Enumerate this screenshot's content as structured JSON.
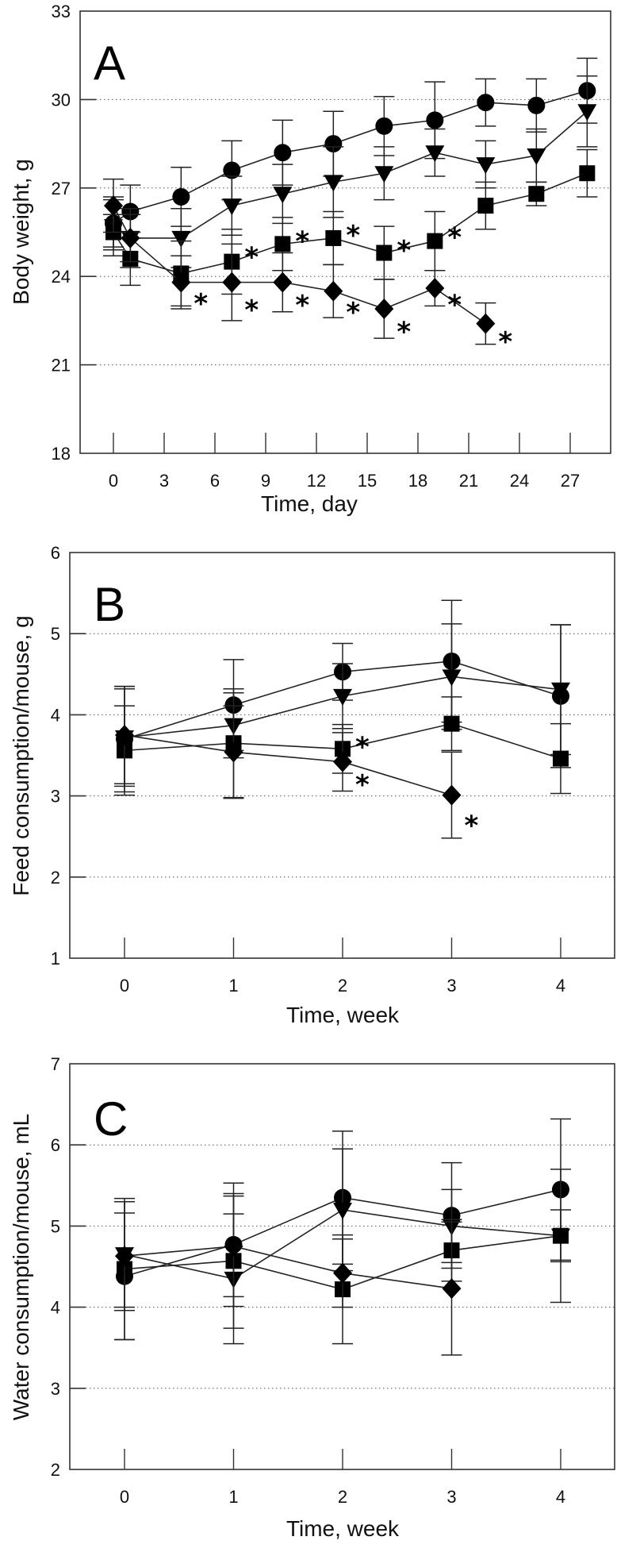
{
  "chart_data": [
    {
      "type": "line",
      "panel": "A",
      "xlabel": "Time, day",
      "ylabel": "Body weight, g",
      "xlim": [
        -4,
        31
      ],
      "ylim": [
        18,
        33
      ],
      "xticks": [
        0,
        3,
        6,
        9,
        12,
        15,
        18,
        21,
        24,
        27
      ],
      "xtick_labels": [
        "0",
        "3",
        "6",
        "9",
        "12",
        "15",
        "18",
        "21",
        "24",
        "27"
      ],
      "yticks": [
        18,
        21,
        24,
        27,
        30,
        33
      ],
      "ytick_labels": [
        "18",
        "21",
        "24",
        "27",
        "30",
        "33"
      ],
      "grid": "horizontal-dotted",
      "series": [
        {
          "name": "circle",
          "marker": "circle",
          "x": [
            0,
            1,
            4,
            7,
            10,
            13,
            16,
            19,
            22,
            25,
            28
          ],
          "values": [
            25.8,
            26.2,
            26.7,
            27.6,
            28.2,
            28.5,
            29.1,
            29.3,
            29.9,
            29.8,
            30.3
          ],
          "err": [
            0.8,
            0.9,
            1.0,
            1.0,
            1.1,
            1.1,
            1.0,
            1.3,
            0.8,
            0.9,
            1.1
          ],
          "sig": []
        },
        {
          "name": "triangle",
          "marker": "triangle-down",
          "x": [
            0,
            1,
            4,
            7,
            10,
            13,
            16,
            19,
            22,
            25,
            28
          ],
          "values": [
            25.7,
            25.3,
            25.3,
            26.4,
            26.8,
            27.2,
            27.5,
            28.2,
            27.8,
            28.1,
            29.6
          ],
          "err": [
            1.0,
            1.0,
            1.0,
            1.0,
            1.0,
            1.2,
            0.9,
            0.8,
            0.8,
            0.9,
            1.2
          ],
          "sig": []
        },
        {
          "name": "square",
          "marker": "square",
          "x": [
            0,
            1,
            4,
            7,
            10,
            13,
            16,
            19,
            22,
            25,
            28
          ],
          "values": [
            25.5,
            24.6,
            24.1,
            24.5,
            25.1,
            25.3,
            24.8,
            25.2,
            26.4,
            26.8,
            27.5
          ],
          "err": [
            0.6,
            0.9,
            1.1,
            1.1,
            0.9,
            0.9,
            0.9,
            1.0,
            0.8,
            0.4,
            0.8
          ],
          "sig": [
            false,
            false,
            false,
            true,
            true,
            true,
            true,
            true,
            false,
            false,
            false
          ]
        },
        {
          "name": "diamond",
          "marker": "diamond",
          "x": [
            0,
            1,
            4,
            7,
            10,
            13,
            16,
            19,
            22
          ],
          "values": [
            26.4,
            25.3,
            23.8,
            23.8,
            23.8,
            23.5,
            22.9,
            23.6,
            22.4
          ],
          "err": [
            0.9,
            0.8,
            0.9,
            1.3,
            1.0,
            0.9,
            1.0,
            0.6,
            0.7
          ],
          "sig": [
            false,
            false,
            true,
            true,
            true,
            true,
            true,
            true,
            true
          ]
        }
      ]
    },
    {
      "type": "line",
      "panel": "B",
      "xlabel": "Time, week",
      "ylabel": "Feed consumption/mouse, g",
      "xlim": [
        -0.5,
        4.5
      ],
      "ylim": [
        1,
        6
      ],
      "xticks": [
        0,
        1,
        2,
        3,
        4
      ],
      "xtick_labels": [
        "0",
        "1",
        "2",
        "3",
        "4"
      ],
      "yticks": [
        1,
        2,
        3,
        4,
        5,
        6
      ],
      "ytick_labels": [
        "1",
        "2",
        "3",
        "4",
        "5",
        "6"
      ],
      "grid": "horizontal-dotted",
      "series": [
        {
          "name": "circle",
          "marker": "circle",
          "x": [
            0,
            1,
            2,
            3,
            4
          ],
          "values": [
            3.7,
            4.12,
            4.53,
            4.66,
            4.23
          ],
          "err": [
            0.65,
            0.56,
            0.35,
            0.75,
            0.88
          ],
          "sig": []
        },
        {
          "name": "triangle",
          "marker": "triangle-down",
          "x": [
            0,
            1,
            2,
            3,
            4
          ],
          "values": [
            3.72,
            3.87,
            4.23,
            4.47,
            4.31
          ],
          "err": [
            0.6,
            0.4,
            0.4,
            0.65,
            0.8
          ],
          "sig": []
        },
        {
          "name": "square",
          "marker": "square",
          "x": [
            0,
            1,
            2,
            3,
            4
          ],
          "values": [
            3.56,
            3.65,
            3.58,
            3.89,
            3.46
          ],
          "err": [
            0.55,
            0.67,
            0.3,
            0.33,
            0.43
          ],
          "sig": [
            false,
            false,
            true,
            false,
            false
          ]
        },
        {
          "name": "diamond",
          "marker": "diamond",
          "x": [
            0,
            1,
            2,
            3
          ],
          "values": [
            3.75,
            3.54,
            3.42,
            3.01
          ],
          "err": [
            0.6,
            0.57,
            0.36,
            0.53
          ],
          "sig": [
            false,
            false,
            true,
            true
          ]
        }
      ]
    },
    {
      "type": "line",
      "panel": "C",
      "xlabel": "Time, week",
      "ylabel": "Water consumption/mouse, mL",
      "xlim": [
        -0.5,
        4.5
      ],
      "ylim": [
        2,
        7
      ],
      "xticks": [
        0,
        1,
        2,
        3,
        4
      ],
      "xtick_labels": [
        "0",
        "1",
        "2",
        "3",
        "4"
      ],
      "yticks": [
        2,
        3,
        4,
        5,
        6,
        7
      ],
      "ytick_labels": [
        "2",
        "3",
        "4",
        "5",
        "6",
        "7"
      ],
      "grid": "horizontal-dotted",
      "series": [
        {
          "name": "circle",
          "marker": "circle",
          "x": [
            0,
            1,
            2,
            3,
            4
          ],
          "values": [
            4.38,
            4.77,
            5.35,
            5.13,
            5.45
          ],
          "err": [
            0.78,
            0.76,
            0.82,
            0.65,
            0.87
          ],
          "sig": []
        },
        {
          "name": "triangle",
          "marker": "triangle-down",
          "x": [
            0,
            1,
            2,
            3,
            4
          ],
          "values": [
            4.65,
            4.35,
            5.2,
            5.0,
            4.88
          ],
          "err": [
            0.65,
            0.8,
            0.75,
            0.45,
            0.82
          ],
          "sig": []
        },
        {
          "name": "square",
          "marker": "square",
          "x": [
            0,
            1,
            2,
            3,
            4
          ],
          "values": [
            4.47,
            4.57,
            4.22,
            4.7,
            4.88
          ],
          "err": [
            0.87,
            0.83,
            0.67,
            0.38,
            0.32
          ],
          "sig": []
        },
        {
          "name": "diamond",
          "marker": "diamond",
          "x": [
            0,
            1,
            2,
            3
          ],
          "values": [
            4.63,
            4.75,
            4.42,
            4.23
          ],
          "err": [
            0.67,
            0.62,
            0.42,
            0.82
          ],
          "sig": []
        }
      ]
    }
  ]
}
